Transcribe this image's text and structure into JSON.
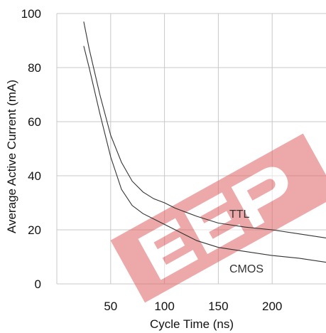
{
  "chart_data": {
    "type": "line",
    "title": "",
    "xlabel": "Cycle Time (ns)",
    "ylabel": "Average Active Current (mA)",
    "xlim": [
      0,
      250
    ],
    "ylim": [
      0,
      100
    ],
    "x_ticks": [
      50,
      100,
      150,
      200
    ],
    "y_ticks": [
      0,
      20,
      40,
      60,
      80,
      100
    ],
    "grid": true,
    "series": [
      {
        "name": "TTL",
        "x": [
          25,
          30,
          40,
          50,
          60,
          70,
          80,
          90,
          100,
          110,
          120,
          130,
          150,
          175,
          200,
          225,
          250
        ],
        "y": [
          97,
          87,
          70,
          55,
          45,
          38,
          34,
          31.5,
          30,
          28,
          26.5,
          25,
          22.5,
          21,
          20,
          18.5,
          17
        ]
      },
      {
        "name": "CMOS",
        "x": [
          25,
          30,
          40,
          50,
          60,
          70,
          80,
          90,
          100,
          110,
          120,
          130,
          150,
          175,
          200,
          225,
          250
        ],
        "y": [
          88,
          80,
          63,
          47,
          35,
          29,
          26,
          24,
          22,
          20,
          18,
          16,
          13.5,
          12,
          10.5,
          9.5,
          8
        ]
      }
    ],
    "color": "#333333",
    "grid_color": "#c8c8c8",
    "watermark_color": "#e06464"
  }
}
